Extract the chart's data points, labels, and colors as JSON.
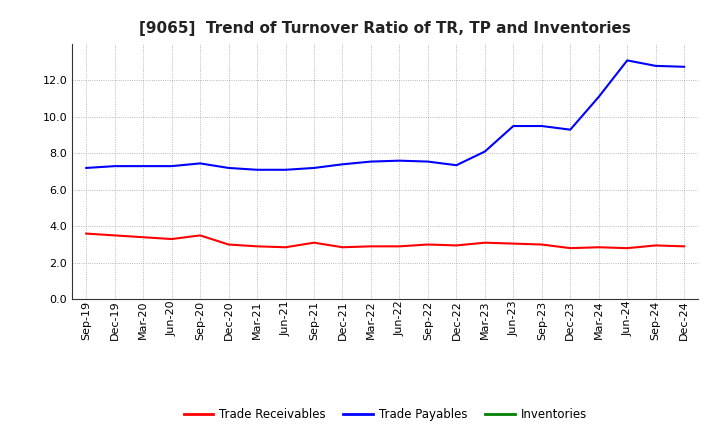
{
  "title": "[9065]  Trend of Turnover Ratio of TR, TP and Inventories",
  "x_labels": [
    "Sep-19",
    "Dec-19",
    "Mar-20",
    "Jun-20",
    "Sep-20",
    "Dec-20",
    "Mar-21",
    "Jun-21",
    "Sep-21",
    "Dec-21",
    "Mar-22",
    "Jun-22",
    "Sep-22",
    "Dec-22",
    "Mar-23",
    "Jun-23",
    "Sep-23",
    "Dec-23",
    "Mar-24",
    "Jun-24",
    "Sep-24",
    "Dec-24"
  ],
  "trade_receivables": [
    3.6,
    3.5,
    3.4,
    3.3,
    3.5,
    3.0,
    2.9,
    2.85,
    3.1,
    2.85,
    2.9,
    2.9,
    3.0,
    2.95,
    3.1,
    3.05,
    3.0,
    2.8,
    2.85,
    2.8,
    2.95,
    2.9
  ],
  "trade_payables": [
    7.2,
    7.3,
    7.3,
    7.3,
    7.45,
    7.2,
    7.1,
    7.1,
    7.2,
    7.4,
    7.55,
    7.6,
    7.55,
    7.35,
    8.1,
    9.5,
    9.5,
    9.3,
    11.1,
    13.1,
    12.8,
    12.75
  ],
  "inventories": [
    null,
    null,
    null,
    null,
    null,
    null,
    null,
    null,
    null,
    null,
    null,
    null,
    null,
    null,
    null,
    null,
    null,
    null,
    null,
    null,
    null,
    null
  ],
  "tr_color": "#ff0000",
  "tp_color": "#0000ff",
  "inv_color": "#008000",
  "ylim": [
    0,
    14.0
  ],
  "yticks": [
    0.0,
    2.0,
    4.0,
    6.0,
    8.0,
    10.0,
    12.0
  ],
  "background_color": "#ffffff",
  "grid_color": "#999999",
  "title_fontsize": 11,
  "tick_fontsize": 8
}
